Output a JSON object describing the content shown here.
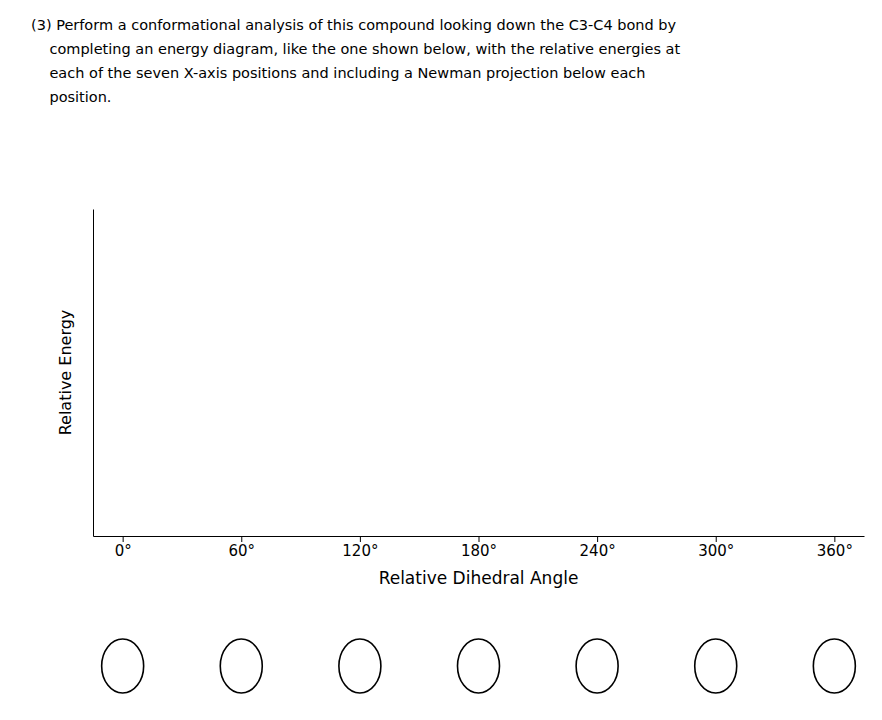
{
  "chart_data": {
    "type": "line",
    "title": [
      "(3) Perform a conformational analysis of this compound looking down the C3-C4 bond by",
      "    completing an energy diagram, like the one shown below, with the relative energies at",
      "    each of the seven X-axis positions and including a Newman projection below each",
      "    position."
    ],
    "x_label": "Relative Dihedral Angle",
    "y_label": "Relative Energy",
    "xlim": [
      -15,
      375
    ],
    "xticks": [
      {
        "value": 0,
        "label": "0°"
      },
      {
        "value": 60,
        "label": "60°"
      },
      {
        "value": 120,
        "label": "120°"
      },
      {
        "value": 180,
        "label": "180°"
      },
      {
        "value": 240,
        "label": "240°"
      },
      {
        "value": 300,
        "label": "300°"
      },
      {
        "value": 360,
        "label": "360°"
      }
    ],
    "ylim": [
      0,
      1
    ],
    "grid": false,
    "tick_labels": "x"
  }
}
